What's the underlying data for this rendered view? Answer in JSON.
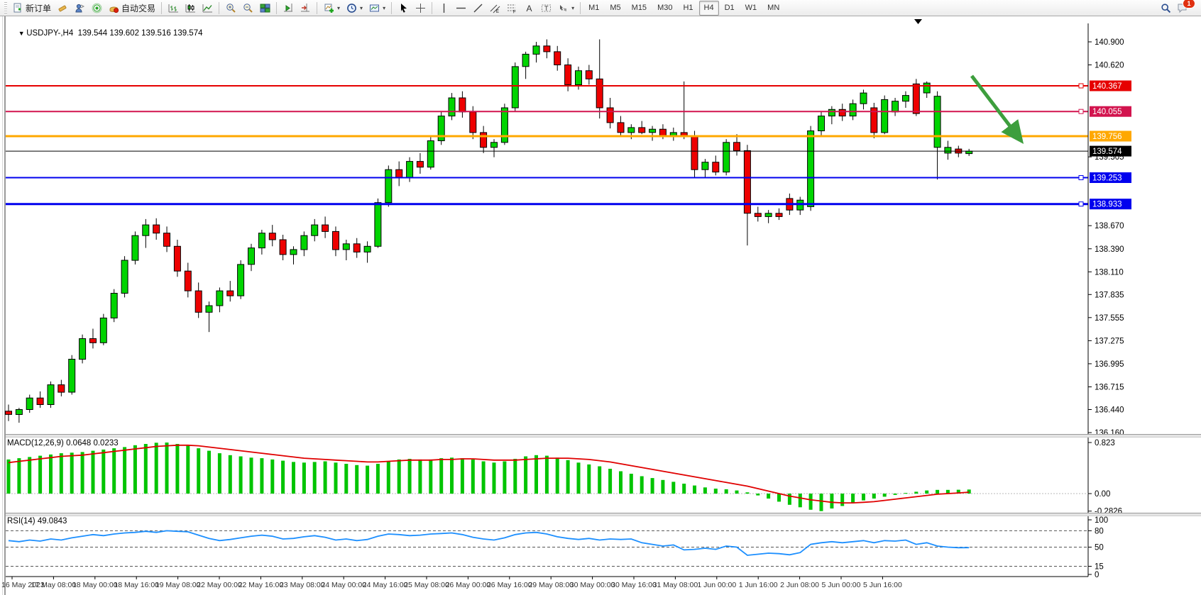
{
  "toolbar": {
    "new_order_label": "新订单",
    "auto_trading_label": "自动交易",
    "timeframes": [
      "M1",
      "M5",
      "M15",
      "M30",
      "H1",
      "H4",
      "D1",
      "W1",
      "MN"
    ],
    "active_timeframe": "H4",
    "notification_count": "1"
  },
  "chart": {
    "title": "USDJPY-,H4  139.544 139.602 139.516 139.574",
    "symbol": "USDJPY-",
    "period": "H4",
    "ohlc": {
      "open": "139.544",
      "high": "139.602",
      "low": "139.516",
      "close": "139.574"
    },
    "levels": [
      {
        "price": 140.367,
        "label": "140.367",
        "color": "#e60000",
        "width": 2,
        "marker": true
      },
      {
        "price": 140.055,
        "label": "140.055",
        "color": "#d2144e",
        "width": 2,
        "marker": true
      },
      {
        "price": 139.756,
        "label": "139.756",
        "color": "#ffa800",
        "width": 3,
        "marker": false
      },
      {
        "price": 139.574,
        "label": "139.574",
        "color": "#000000",
        "width": 1,
        "marker": false
      },
      {
        "price": 139.253,
        "label": "139.253",
        "color": "#0000ee",
        "width": 2,
        "marker": true
      },
      {
        "price": 138.933,
        "label": "138.933",
        "color": "#0000ee",
        "width": 3,
        "marker": true
      }
    ],
    "y_axis_ticks": [
      "140.900",
      "140.620",
      "139.505",
      "138.670",
      "138.390",
      "138.110",
      "137.835",
      "137.555",
      "137.275",
      "136.995",
      "136.715",
      "136.440",
      "136.160"
    ],
    "x_axis_labels": [
      "16 May 2023",
      "17 May 08:00",
      "18 May 00:00",
      "18 May 16:00",
      "19 May 08:00",
      "22 May 00:00",
      "22 May 16:00",
      "23 May 08:00",
      "24 May 00:00",
      "24 May 16:00",
      "25 May 08:00",
      "26 May 00:00",
      "26 May 16:00",
      "29 May 08:00",
      "30 May 00:00",
      "30 May 16:00",
      "31 May 08:00",
      "1 Jun 00:00",
      "1 Jun 16:00",
      "2 Jun 08:00",
      "5 Jun 00:00",
      "5 Jun 16:00"
    ],
    "annotation_arrow": {
      "color": "#3d9e3d"
    }
  },
  "chart_data": {
    "type": "candlestick",
    "symbol": "USDJPY-",
    "timeframe": "H4",
    "price_range": [
      136.16,
      140.9
    ],
    "style": {
      "bull": "#00d400",
      "bear": "#ee0000",
      "wick": "#000000"
    },
    "candles": [
      [
        136.42,
        136.5,
        136.3,
        136.38
      ],
      [
        136.38,
        136.46,
        136.28,
        136.44
      ],
      [
        136.44,
        136.62,
        136.4,
        136.58
      ],
      [
        136.58,
        136.66,
        136.46,
        136.5
      ],
      [
        136.5,
        136.78,
        136.46,
        136.74
      ],
      [
        136.74,
        136.8,
        136.6,
        136.65
      ],
      [
        136.65,
        137.1,
        136.62,
        137.05
      ],
      [
        137.05,
        137.35,
        137.0,
        137.3
      ],
      [
        137.3,
        137.42,
        137.18,
        137.25
      ],
      [
        137.25,
        137.6,
        137.22,
        137.55
      ],
      [
        137.55,
        137.9,
        137.5,
        137.85
      ],
      [
        137.85,
        138.3,
        137.8,
        138.25
      ],
      [
        138.25,
        138.6,
        138.2,
        138.55
      ],
      [
        138.55,
        138.75,
        138.4,
        138.68
      ],
      [
        138.68,
        138.76,
        138.5,
        138.58
      ],
      [
        138.58,
        138.66,
        138.35,
        138.42
      ],
      [
        138.42,
        138.5,
        138.05,
        138.12
      ],
      [
        138.12,
        138.22,
        137.8,
        137.88
      ],
      [
        137.88,
        137.98,
        137.55,
        137.62
      ],
      [
        137.62,
        137.75,
        137.38,
        137.7
      ],
      [
        137.7,
        137.92,
        137.62,
        137.88
      ],
      [
        137.88,
        138.0,
        137.75,
        137.82
      ],
      [
        137.82,
        138.25,
        137.78,
        138.2
      ],
      [
        138.2,
        138.45,
        138.12,
        138.4
      ],
      [
        138.4,
        138.62,
        138.32,
        138.58
      ],
      [
        138.58,
        138.68,
        138.42,
        138.5
      ],
      [
        138.5,
        138.56,
        138.25,
        138.32
      ],
      [
        138.32,
        138.42,
        138.2,
        138.38
      ],
      [
        138.38,
        138.6,
        138.3,
        138.55
      ],
      [
        138.55,
        138.75,
        138.48,
        138.68
      ],
      [
        138.68,
        138.78,
        138.52,
        138.6
      ],
      [
        138.6,
        138.66,
        138.3,
        138.38
      ],
      [
        138.38,
        138.5,
        138.25,
        138.45
      ],
      [
        138.45,
        138.52,
        138.28,
        138.35
      ],
      [
        138.35,
        138.48,
        138.22,
        138.42
      ],
      [
        138.42,
        139.0,
        138.4,
        138.95
      ],
      [
        138.95,
        139.4,
        138.9,
        139.35
      ],
      [
        139.35,
        139.45,
        139.15,
        139.25
      ],
      [
        139.25,
        139.5,
        139.2,
        139.45
      ],
      [
        139.45,
        139.55,
        139.3,
        139.38
      ],
      [
        139.38,
        139.75,
        139.35,
        139.7
      ],
      [
        139.7,
        140.05,
        139.65,
        140.0
      ],
      [
        140.0,
        140.28,
        139.95,
        140.22
      ],
      [
        140.22,
        140.3,
        139.98,
        140.05
      ],
      [
        140.05,
        140.12,
        139.72,
        139.8
      ],
      [
        139.8,
        139.88,
        139.55,
        139.62
      ],
      [
        139.62,
        139.72,
        139.5,
        139.68
      ],
      [
        139.68,
        140.15,
        139.65,
        140.1
      ],
      [
        140.1,
        140.65,
        140.05,
        140.6
      ],
      [
        140.6,
        140.78,
        140.45,
        140.75
      ],
      [
        140.75,
        140.9,
        140.65,
        140.85
      ],
      [
        140.85,
        140.93,
        140.7,
        140.78
      ],
      [
        140.78,
        140.85,
        140.55,
        140.62
      ],
      [
        140.62,
        140.7,
        140.3,
        140.38
      ],
      [
        140.38,
        140.6,
        140.32,
        140.55
      ],
      [
        140.55,
        140.62,
        140.38,
        140.45
      ],
      [
        140.45,
        140.93,
        139.97,
        140.1
      ],
      [
        140.1,
        140.22,
        139.85,
        139.92
      ],
      [
        139.92,
        140.0,
        139.75,
        139.8
      ],
      [
        139.8,
        139.9,
        139.72,
        139.86
      ],
      [
        139.86,
        139.94,
        139.78,
        139.8
      ],
      [
        139.8,
        139.88,
        139.7,
        139.84
      ],
      [
        139.84,
        139.9,
        139.72,
        139.76
      ],
      [
        139.76,
        139.86,
        139.7,
        139.8
      ],
      [
        139.8,
        140.42,
        139.72,
        139.76
      ],
      [
        139.76,
        139.82,
        139.25,
        139.35
      ],
      [
        139.35,
        139.48,
        139.26,
        139.44
      ],
      [
        139.44,
        139.52,
        139.28,
        139.32
      ],
      [
        139.32,
        139.72,
        139.28,
        139.68
      ],
      [
        139.68,
        139.78,
        139.52,
        139.58
      ],
      [
        139.58,
        139.65,
        138.43,
        138.82
      ],
      [
        138.82,
        138.9,
        138.72,
        138.78
      ],
      [
        138.78,
        138.86,
        138.7,
        138.82
      ],
      [
        138.82,
        138.88,
        138.74,
        138.78
      ],
      [
        139.0,
        139.06,
        138.8,
        138.86
      ],
      [
        138.86,
        139.02,
        138.8,
        138.98
      ],
      [
        138.9,
        139.88,
        138.85,
        139.82
      ],
      [
        139.82,
        140.05,
        139.75,
        140.0
      ],
      [
        140.0,
        140.12,
        139.9,
        140.08
      ],
      [
        140.08,
        140.15,
        139.94,
        140.0
      ],
      [
        140.0,
        140.2,
        139.95,
        140.15
      ],
      [
        140.15,
        140.32,
        140.08,
        140.28
      ],
      [
        140.1,
        140.16,
        139.73,
        139.8
      ],
      [
        139.8,
        140.25,
        139.78,
        140.2
      ],
      [
        140.05,
        140.22,
        140.0,
        140.18
      ],
      [
        140.18,
        140.3,
        140.1,
        140.25
      ],
      [
        140.39,
        140.45,
        140.0,
        140.03
      ],
      [
        140.28,
        140.42,
        140.22,
        140.4
      ],
      [
        139.62,
        140.3,
        139.23,
        140.24
      ],
      [
        139.55,
        139.7,
        139.47,
        139.62
      ],
      [
        139.6,
        139.64,
        139.5,
        139.55
      ],
      [
        139.544,
        139.602,
        139.516,
        139.574
      ]
    ],
    "indicators": {
      "macd": {
        "label_full": "MACD(12,26,9) 0.0648 0.0233",
        "params": "12,26,9",
        "main_value": "0.0648",
        "signal_value": "0.0233",
        "axis_labels": [
          "0.823",
          "0.00",
          "-0.2826"
        ],
        "histogram_color": "#00c400",
        "signal_color": "#e00000",
        "histogram": [
          0.55,
          0.57,
          0.59,
          0.61,
          0.63,
          0.65,
          0.66,
          0.67,
          0.69,
          0.71,
          0.73,
          0.75,
          0.78,
          0.8,
          0.82,
          0.823,
          0.8,
          0.77,
          0.73,
          0.69,
          0.65,
          0.62,
          0.6,
          0.58,
          0.57,
          0.55,
          0.53,
          0.51,
          0.5,
          0.51,
          0.52,
          0.5,
          0.48,
          0.46,
          0.45,
          0.48,
          0.52,
          0.55,
          0.56,
          0.55,
          0.55,
          0.57,
          0.58,
          0.57,
          0.55,
          0.52,
          0.5,
          0.52,
          0.56,
          0.6,
          0.62,
          0.61,
          0.58,
          0.54,
          0.5,
          0.47,
          0.44,
          0.4,
          0.36,
          0.32,
          0.28,
          0.25,
          0.22,
          0.19,
          0.16,
          0.13,
          0.1,
          0.08,
          0.07,
          0.05,
          0.02,
          -0.03,
          -0.08,
          -0.13,
          -0.18,
          -0.22,
          -0.26,
          -0.2826,
          -0.24,
          -0.2,
          -0.15,
          -0.11,
          -0.08,
          -0.05,
          -0.02,
          0.01,
          0.03,
          0.05,
          0.06,
          0.06,
          0.062,
          0.0648
        ],
        "signal": [
          0.5,
          0.52,
          0.54,
          0.56,
          0.58,
          0.6,
          0.61,
          0.62,
          0.64,
          0.66,
          0.68,
          0.7,
          0.72,
          0.74,
          0.76,
          0.77,
          0.78,
          0.78,
          0.77,
          0.75,
          0.73,
          0.71,
          0.69,
          0.67,
          0.65,
          0.63,
          0.61,
          0.59,
          0.57,
          0.56,
          0.55,
          0.54,
          0.53,
          0.52,
          0.51,
          0.51,
          0.52,
          0.53,
          0.54,
          0.54,
          0.54,
          0.55,
          0.55,
          0.56,
          0.56,
          0.55,
          0.54,
          0.54,
          0.54,
          0.55,
          0.56,
          0.57,
          0.57,
          0.57,
          0.56,
          0.55,
          0.53,
          0.51,
          0.48,
          0.45,
          0.42,
          0.39,
          0.36,
          0.33,
          0.3,
          0.27,
          0.24,
          0.21,
          0.18,
          0.15,
          0.12,
          0.08,
          0.04,
          0.0,
          -0.04,
          -0.07,
          -0.1,
          -0.12,
          -0.14,
          -0.15,
          -0.15,
          -0.14,
          -0.13,
          -0.11,
          -0.09,
          -0.07,
          -0.05,
          -0.03,
          -0.01,
          0.0,
          0.01,
          0.0233
        ]
      },
      "rsi": {
        "label_full": "RSI(14) 49.0843",
        "period": "14",
        "value": "49.0843",
        "axis_labels": [
          "100",
          "80",
          "50",
          "15",
          "0"
        ],
        "levels": [
          80,
          50,
          15
        ],
        "color": "#1c8fff",
        "series": [
          62,
          60,
          63,
          61,
          65,
          63,
          67,
          70,
          73,
          71,
          74,
          76,
          77,
          79,
          77,
          80,
          79,
          78,
          72,
          66,
          62,
          64,
          67,
          70,
          72,
          70,
          65,
          66,
          69,
          71,
          68,
          63,
          65,
          62,
          64,
          70,
          74,
          73,
          71,
          72,
          74,
          75,
          76,
          73,
          68,
          65,
          63,
          67,
          73,
          76,
          77,
          74,
          69,
          66,
          64,
          66,
          63,
          65,
          64,
          65,
          58,
          55,
          52,
          54,
          45,
          46,
          48,
          46,
          52,
          50,
          35,
          37,
          39,
          38,
          36,
          40,
          55,
          58,
          60,
          58,
          60,
          62,
          58,
          62,
          61,
          63,
          55,
          58,
          52,
          50,
          49,
          49.08
        ]
      }
    }
  }
}
